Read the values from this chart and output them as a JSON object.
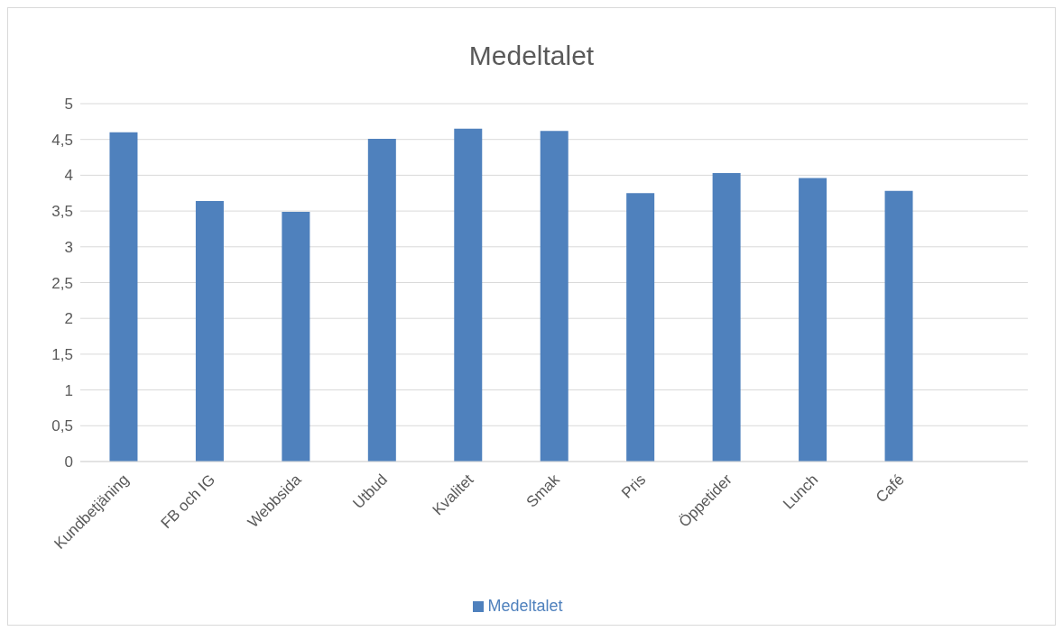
{
  "chart_data": {
    "type": "bar",
    "title": "Medeltalet",
    "categories": [
      "Kundbetjäning",
      "FB och IG",
      "Webbsida",
      "Utbud",
      "Kvalitet",
      "Smak",
      "Pris",
      "Öppetider",
      "Lunch",
      "Café",
      null
    ],
    "series": [
      {
        "name": "Medeltalet",
        "color": "#4f81bd",
        "values": [
          4.6,
          3.64,
          3.49,
          4.51,
          4.65,
          4.62,
          3.75,
          4.03,
          3.96,
          3.78,
          null
        ]
      }
    ],
    "ylim": [
      0,
      5
    ],
    "yticks": [
      0,
      {
        "value": 0.5,
        "label": "0,5"
      },
      1,
      {
        "value": 1.5,
        "label": "1,5"
      },
      2,
      {
        "value": 2.5,
        "label": "2,5"
      },
      3,
      {
        "value": 3.5,
        "label": "3,5"
      },
      4,
      {
        "value": 4.5,
        "label": "4,5"
      },
      5
    ],
    "grid": "y",
    "legend": "bottom"
  }
}
